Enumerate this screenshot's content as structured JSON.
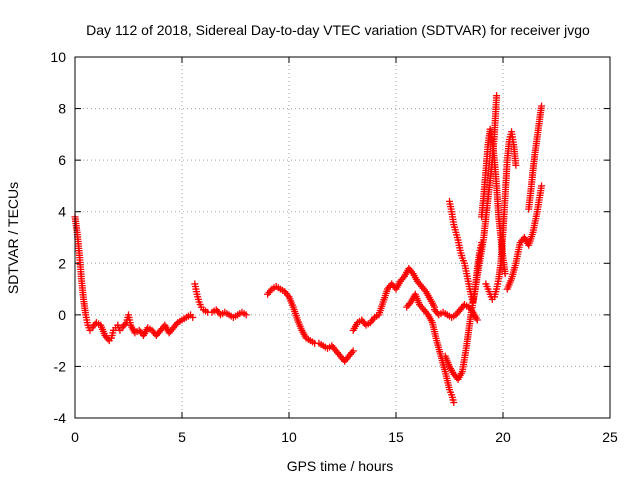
{
  "chart_data": {
    "type": "scatter",
    "title": "Day 112 of 2018, Sidereal Day-to-day VTEC variation (SDTVAR) for receiver jvgo",
    "xlabel": "GPS time / hours",
    "ylabel": "SDTVAR / TECUs",
    "xlim": [
      0,
      25
    ],
    "ylim": [
      -4,
      10
    ],
    "xticks": [
      "0",
      "5",
      "10",
      "15",
      "20",
      "25"
    ],
    "yticks": [
      "-4",
      "-2",
      "0",
      "2",
      "4",
      "6",
      "8",
      "10"
    ],
    "grid": true,
    "marker": "plus",
    "color": "#ff0000",
    "series": [
      {
        "x": [
          0.0,
          0.1,
          0.2,
          0.3,
          0.4,
          0.5,
          0.6,
          0.7,
          0.8,
          1.0,
          1.2,
          1.4,
          1.6,
          1.7,
          1.8,
          1.9,
          2.0,
          2.1,
          2.2,
          2.4,
          2.5,
          2.6,
          2.8,
          3.0,
          3.2,
          3.4,
          3.6,
          3.8,
          4.0,
          4.2,
          4.4,
          4.6,
          4.8,
          5.0,
          5.2,
          5.4,
          5.5
        ],
        "y": [
          3.8,
          3.2,
          2.4,
          1.4,
          0.6,
          0.0,
          -0.4,
          -0.6,
          -0.5,
          -0.3,
          -0.4,
          -0.8,
          -1.0,
          -0.9,
          -0.6,
          -0.5,
          -0.4,
          -0.6,
          -0.5,
          -0.3,
          0.0,
          -0.4,
          -0.7,
          -0.6,
          -0.8,
          -0.5,
          -0.6,
          -0.8,
          -0.6,
          -0.4,
          -0.7,
          -0.5,
          -0.3,
          -0.2,
          -0.1,
          0.0,
          -0.1
        ]
      },
      {
        "x": [
          5.6,
          5.7,
          5.8,
          5.9,
          6.0,
          6.2,
          6.4,
          6.6,
          6.8,
          7.0,
          7.2,
          7.4,
          7.6,
          7.8,
          8.0
        ],
        "y": [
          1.2,
          0.8,
          0.5,
          0.3,
          0.2,
          0.1,
          0.1,
          0.2,
          0.0,
          0.1,
          0.0,
          -0.1,
          0.0,
          0.1,
          0.0
        ]
      },
      {
        "x": [
          9.0,
          9.2,
          9.4,
          9.6,
          9.8,
          10.0,
          10.2,
          10.4,
          10.6,
          10.8,
          11.0,
          11.2,
          11.4,
          11.6,
          11.8,
          12.0,
          12.2,
          12.4,
          12.6,
          12.8,
          13.0
        ],
        "y": [
          0.8,
          1.0,
          1.1,
          1.0,
          0.9,
          0.7,
          0.3,
          -0.2,
          -0.6,
          -0.9,
          -1.0,
          -1.1,
          -1.1,
          -1.2,
          -1.3,
          -1.2,
          -1.4,
          -1.6,
          -1.8,
          -1.6,
          -1.4
        ]
      },
      {
        "x": [
          13.0,
          13.2,
          13.4,
          13.6,
          13.8,
          14.0,
          14.2,
          14.4,
          14.6,
          14.8,
          15.0,
          15.2,
          15.4,
          15.6,
          15.8,
          16.0,
          16.2,
          16.4,
          16.6,
          16.8
        ],
        "y": [
          -0.6,
          -0.3,
          -0.2,
          -0.4,
          -0.3,
          -0.1,
          0.0,
          0.5,
          1.0,
          1.2,
          1.0,
          1.3,
          1.5,
          1.8,
          1.6,
          1.3,
          1.1,
          0.9,
          0.6,
          0.3
        ]
      },
      {
        "x": [
          15.5,
          15.7,
          15.9,
          16.1,
          16.3,
          16.5,
          16.7,
          16.9,
          17.1,
          17.3,
          17.5,
          17.6,
          17.7
        ],
        "y": [
          0.3,
          0.5,
          0.8,
          0.4,
          0.2,
          0.0,
          -0.3,
          -1.0,
          -1.6,
          -2.2,
          -2.9,
          -3.1,
          -3.4
        ]
      },
      {
        "x": [
          16.8,
          17.0,
          17.2,
          17.4,
          17.6,
          17.8,
          18.0,
          18.2,
          18.4,
          18.6,
          18.8
        ],
        "y": [
          0.2,
          0.0,
          0.1,
          0.0,
          -0.1,
          0.0,
          0.2,
          0.4,
          0.3,
          0.1,
          -0.2
        ]
      },
      {
        "x": [
          17.5,
          17.6,
          17.7,
          17.8,
          17.9,
          18.0,
          18.1,
          18.2,
          18.3,
          18.4,
          18.5,
          18.6,
          18.7,
          18.8,
          18.9,
          19.0
        ],
        "y": [
          4.4,
          4.0,
          3.5,
          3.2,
          2.9,
          2.5,
          2.2,
          2.0,
          1.6,
          1.2,
          0.8,
          0.5,
          1.0,
          1.8,
          2.4,
          2.8
        ]
      },
      {
        "x": [
          17.3,
          17.5,
          17.7,
          17.9,
          18.1,
          18.3,
          18.5,
          18.7,
          18.9,
          19.1,
          19.3,
          19.5,
          19.6,
          19.7
        ],
        "y": [
          -1.6,
          -2.0,
          -2.3,
          -2.5,
          -2.2,
          -1.2,
          0.0,
          1.0,
          2.0,
          3.0,
          4.5,
          6.0,
          7.0,
          8.5
        ]
      },
      {
        "x": [
          19.0,
          19.1,
          19.2,
          19.3,
          19.4,
          19.5,
          19.6,
          19.7,
          19.8,
          19.9,
          20.0,
          20.1
        ],
        "y": [
          3.8,
          4.6,
          5.6,
          6.6,
          7.2,
          6.8,
          6.0,
          5.0,
          3.8,
          3.0,
          2.2,
          1.6
        ]
      },
      {
        "x": [
          19.2,
          19.3,
          19.4,
          19.5,
          19.6,
          19.7,
          19.8,
          19.9,
          20.0,
          20.1,
          20.2,
          20.3,
          20.4,
          20.5,
          20.6
        ],
        "y": [
          1.2,
          1.0,
          0.8,
          0.6,
          0.7,
          1.0,
          1.4,
          2.0,
          3.2,
          4.6,
          6.0,
          6.8,
          7.1,
          6.6,
          5.8
        ]
      },
      {
        "x": [
          20.2,
          20.4,
          20.6,
          20.8,
          21.0,
          21.2,
          21.4,
          21.6,
          21.8
        ],
        "y": [
          1.0,
          1.4,
          2.0,
          2.8,
          3.0,
          2.7,
          3.2,
          4.0,
          5.0
        ]
      },
      {
        "x": [
          21.2,
          21.3,
          21.4,
          21.5,
          21.6,
          21.7,
          21.8
        ],
        "y": [
          4.1,
          4.8,
          5.6,
          6.3,
          6.9,
          7.5,
          8.1
        ]
      }
    ]
  }
}
